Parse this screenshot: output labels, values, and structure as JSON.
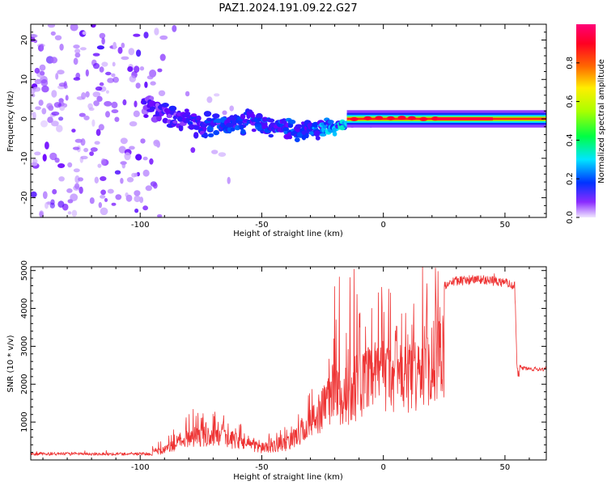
{
  "title": "PAZ1.2024.191.09.22.G27",
  "chart_data": [
    {
      "type": "heatmap",
      "xlabel": "Height of straight line (km)",
      "ylabel": "Frequency (Hz)",
      "xlim": [
        -145,
        67
      ],
      "ylim": [
        -25,
        24
      ],
      "xticks": [
        -100,
        -50,
        0,
        50
      ],
      "yticks": [
        -20,
        -10,
        0,
        10,
        20
      ],
      "grid": false,
      "colorbar": {
        "label": "Normalized spectral amplitude",
        "range": [
          0,
          1
        ],
        "ticks": [
          0.0,
          0.2,
          0.4,
          0.6,
          0.8
        ],
        "colors": [
          "#f0e6ff",
          "#6a00ff",
          "#0033ff",
          "#00e5ff",
          "#00ff44",
          "#aaff00",
          "#ffee00",
          "#ff6a00",
          "#ff0022",
          "#ff0077"
        ]
      },
      "ridge": {
        "x": [
          -95,
          -85,
          -75,
          -65,
          -55,
          -45,
          -35,
          -25,
          -15,
          -5,
          5,
          15,
          25,
          40,
          67
        ],
        "freq": [
          3,
          0,
          -2,
          -1.5,
          -1,
          -2,
          -3.5,
          -3,
          -1,
          -0.5,
          0.5,
          0.3,
          0,
          0,
          0
        ],
        "amplitude": [
          0.25,
          0.3,
          0.35,
          0.4,
          0.4,
          0.45,
          0.45,
          0.5,
          0.6,
          0.75,
          0.8,
          0.85,
          0.9,
          0.95,
          0.95
        ]
      }
    },
    {
      "type": "line",
      "xlabel": "Height of straight line (km)",
      "ylabel": "SNR (10 * v/v)",
      "xlim": [
        -145,
        67
      ],
      "ylim": [
        0,
        5100
      ],
      "xticks": [
        -100,
        -50,
        0,
        50
      ],
      "yticks": [
        1000,
        2000,
        3000,
        4000,
        5000
      ],
      "grid": false,
      "color": "#ee3333",
      "envelope": {
        "x": [
          -145,
          -120,
          -100,
          -90,
          -80,
          -70,
          -60,
          -50,
          -40,
          -30,
          -20,
          -15,
          -10,
          -5,
          0,
          10,
          20,
          25,
          30,
          40,
          50,
          54,
          55,
          56,
          60,
          67
        ],
        "y": [
          150,
          160,
          250,
          400,
          1000,
          1000,
          800,
          500,
          650,
          1500,
          2800,
          2500,
          3000,
          3400,
          3600,
          3400,
          4200,
          4700,
          4850,
          4900,
          4800,
          4750,
          2450,
          2450,
          2400,
          2400
        ]
      }
    }
  ]
}
